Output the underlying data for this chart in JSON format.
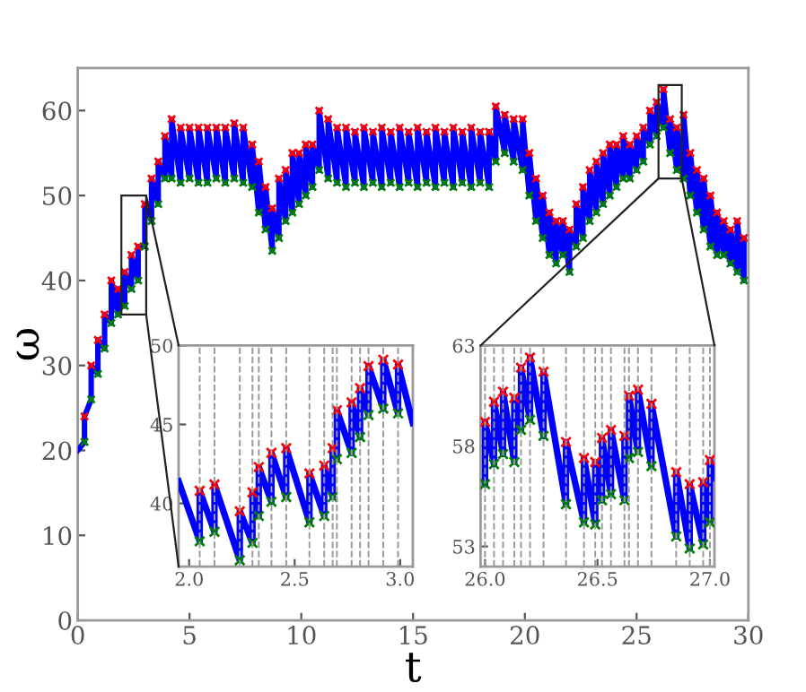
{
  "chart_data": [
    {
      "type": "line",
      "xlabel": "t",
      "ylabel": "ω",
      "xlim": [
        0,
        30
      ],
      "ylim": [
        0,
        65
      ],
      "xticks": [
        0,
        5,
        10,
        15,
        20,
        25,
        30
      ],
      "yticks": [
        0,
        10,
        20,
        30,
        40,
        50,
        60
      ],
      "grid": false,
      "line_style": "solid",
      "series": [
        {
          "color": "#0000ff",
          "marker": "none",
          "x": [
            0,
            0.3,
            0.3,
            0.6,
            0.6,
            0.9,
            0.9,
            1.2,
            1.2,
            1.5,
            1.5,
            1.8,
            1.8,
            2.1,
            2.1,
            2.4,
            2.4,
            2.7,
            2.7,
            3.0,
            3.0,
            3.3,
            3.3,
            3.6,
            3.6,
            3.9,
            3.9,
            4.2,
            4.2,
            4.6,
            4.6,
            5.0,
            5.0,
            5.4,
            5.4,
            5.8,
            5.8,
            6.2,
            6.2,
            6.6,
            6.6,
            7.0,
            7.0,
            7.4,
            7.4,
            7.8,
            7.8,
            8.1,
            8.1,
            8.4,
            8.4,
            8.7,
            8.7,
            9.0,
            9.0,
            9.3,
            9.3,
            9.6,
            9.6,
            9.9,
            9.9,
            10.2,
            10.2,
            10.5,
            10.5,
            10.8,
            10.8,
            11.2,
            11.2,
            11.6,
            11.6,
            12.0,
            12.0,
            12.4,
            12.4,
            12.8,
            12.8,
            13.2,
            13.2,
            13.6,
            13.6,
            14.0,
            14.0,
            14.4,
            14.4,
            14.8,
            14.8,
            15.2,
            15.2,
            15.6,
            15.6,
            16.0,
            16.0,
            16.4,
            16.4,
            16.8,
            16.8,
            17.2,
            17.2,
            17.6,
            17.6,
            18.0,
            18.0,
            18.4,
            18.4,
            18.7,
            18.7,
            19.1,
            19.1,
            19.5,
            19.5,
            19.9,
            19.9,
            20.2,
            20.2,
            20.5,
            20.5,
            20.8,
            20.8,
            21.1,
            21.1,
            21.4,
            21.4,
            21.7,
            21.7,
            22.0,
            22.0,
            22.3,
            22.3,
            22.6,
            22.6,
            22.9,
            22.9,
            23.2,
            23.2,
            23.5,
            23.5,
            23.8,
            23.8,
            24.1,
            24.1,
            24.4,
            24.4,
            24.7,
            24.7,
            25.0,
            25.0,
            25.3,
            25.3,
            25.6,
            25.6,
            25.9,
            25.9,
            26.2,
            26.2,
            26.5,
            26.5,
            26.8,
            26.8,
            27.1,
            27.1,
            27.4,
            27.4,
            27.7,
            27.7,
            28.0,
            28.0,
            28.3,
            28.3,
            28.6,
            28.6,
            28.9,
            28.9,
            29.2,
            29.2,
            29.5,
            29.5,
            29.8,
            29.8
          ],
          "values": [
            20,
            21,
            24,
            26,
            30,
            29,
            33,
            32,
            36,
            35,
            40,
            36,
            39,
            37,
            41,
            39,
            43,
            40,
            44,
            44,
            49,
            47,
            52,
            49,
            54,
            52,
            57,
            52,
            59,
            51.5,
            58,
            52,
            58,
            51.5,
            58,
            51.5,
            58,
            52,
            58,
            51.5,
            58,
            52,
            58.5,
            51.5,
            58,
            51,
            56,
            48,
            54,
            46,
            51,
            43.5,
            48.5,
            45,
            52,
            47,
            53,
            48,
            55,
            49,
            55,
            50,
            56,
            51,
            56,
            53,
            60,
            52,
            59,
            51.5,
            58,
            51,
            58,
            51.5,
            57.5,
            51,
            58,
            51.5,
            57.5,
            51,
            58,
            51.5,
            57.5,
            51,
            58,
            51.5,
            57.5,
            51,
            58,
            51.5,
            57.5,
            51,
            58,
            51.5,
            57.5,
            51,
            58,
            51.5,
            57.5,
            51,
            58,
            51.5,
            57.5,
            51,
            57.5,
            54,
            60.5,
            55,
            59.5,
            54,
            59,
            53,
            59,
            50,
            55,
            47,
            52,
            45,
            50,
            43,
            48,
            42,
            47,
            43,
            47,
            41,
            46,
            44,
            49,
            45,
            51,
            47,
            53,
            48,
            54,
            49,
            55,
            50,
            56,
            51,
            56,
            52,
            57,
            52,
            56,
            53,
            57,
            54,
            58,
            56,
            60,
            57,
            61,
            58,
            62.5,
            55,
            59,
            53,
            58,
            52,
            59.5,
            50,
            55,
            48,
            53,
            46,
            52,
            44,
            50,
            43,
            48,
            43,
            47,
            42,
            46,
            41,
            47,
            40,
            45
          ]
        },
        {
          "type": "scatter",
          "color": "#ff0000",
          "marker": "cross",
          "x": [
            0.3,
            0.6,
            0.9,
            1.2,
            1.5,
            1.8,
            2.1,
            2.4,
            2.7,
            3.0,
            3.3,
            3.6,
            3.9,
            4.2,
            4.6,
            5.0,
            5.4,
            5.8,
            6.2,
            6.6,
            7.0,
            7.4,
            7.8,
            8.1,
            8.4,
            8.7,
            9.0,
            9.3,
            9.6,
            9.9,
            10.2,
            10.5,
            10.8,
            11.2,
            11.6,
            12.0,
            12.4,
            12.8,
            13.2,
            13.6,
            14.0,
            14.4,
            14.8,
            15.2,
            15.6,
            16.0,
            16.4,
            16.8,
            17.2,
            17.6,
            18.0,
            18.4,
            18.7,
            19.1,
            19.5,
            19.9,
            20.2,
            20.5,
            20.8,
            21.1,
            21.4,
            21.7,
            22.0,
            22.3,
            22.6,
            22.9,
            23.2,
            23.5,
            23.8,
            24.1,
            24.4,
            24.7,
            25.0,
            25.3,
            25.6,
            25.9,
            26.2,
            26.5,
            26.8,
            27.1,
            27.4,
            27.7,
            28.0,
            28.3,
            28.6,
            28.9,
            29.2,
            29.5,
            29.8
          ],
          "values": [
            24,
            30,
            33,
            36,
            40,
            39,
            41,
            43,
            44,
            49,
            52,
            54,
            57,
            59,
            58,
            58,
            58,
            58,
            58,
            58,
            58.5,
            58,
            56,
            54,
            51,
            48.5,
            52,
            53,
            55,
            55,
            56,
            56,
            60,
            59,
            58,
            58,
            57.5,
            58,
            57.5,
            58,
            57.5,
            58,
            57.5,
            58,
            57.5,
            58,
            57.5,
            58,
            57.5,
            58,
            57.5,
            57.5,
            60.5,
            59.5,
            59,
            59,
            55,
            52,
            50,
            48,
            47,
            47,
            46,
            49,
            51,
            53,
            54,
            55,
            56,
            56,
            57,
            56,
            57,
            58,
            60,
            61,
            62.5,
            59,
            58,
            59.5,
            55,
            53,
            52,
            50,
            48,
            47,
            46,
            47,
            45
          ]
        },
        {
          "type": "scatter",
          "color": "#008000",
          "marker": "cross",
          "x": [
            0.3,
            0.6,
            0.9,
            1.2,
            1.5,
            1.8,
            2.1,
            2.4,
            2.7,
            3.0,
            3.3,
            3.6,
            3.9,
            4.2,
            4.6,
            5.0,
            5.4,
            5.8,
            6.2,
            6.6,
            7.0,
            7.4,
            7.8,
            8.1,
            8.4,
            8.7,
            9.0,
            9.3,
            9.6,
            9.9,
            10.2,
            10.5,
            10.8,
            11.2,
            11.6,
            12.0,
            12.4,
            12.8,
            13.2,
            13.6,
            14.0,
            14.4,
            14.8,
            15.2,
            15.6,
            16.0,
            16.4,
            16.8,
            17.2,
            17.6,
            18.0,
            18.4,
            18.7,
            19.1,
            19.5,
            19.9,
            20.2,
            20.5,
            20.8,
            21.1,
            21.4,
            21.7,
            22.0,
            22.3,
            22.6,
            22.9,
            23.2,
            23.5,
            23.8,
            24.1,
            24.4,
            24.7,
            25.0,
            25.3,
            25.6,
            25.9,
            26.2,
            26.5,
            26.8,
            27.1,
            27.4,
            27.7,
            28.0,
            28.3,
            28.6,
            28.9,
            29.2,
            29.5,
            29.8
          ],
          "values": [
            21,
            26,
            29,
            32,
            35,
            36,
            37,
            39,
            40,
            44,
            47,
            49,
            52,
            52,
            51.5,
            52,
            51.5,
            51.5,
            52,
            51.5,
            52,
            51.5,
            51,
            48,
            46,
            43.5,
            45,
            47,
            48,
            49,
            50,
            51,
            53,
            52,
            51.5,
            51,
            51.5,
            51,
            51.5,
            51,
            51.5,
            51,
            51.5,
            51,
            51.5,
            51,
            51.5,
            51,
            51.5,
            51,
            51.5,
            51,
            54,
            55,
            54,
            53,
            50,
            47,
            45,
            43,
            42,
            43,
            41,
            44,
            45,
            47,
            48,
            49,
            50,
            51,
            52,
            52,
            53,
            54,
            56,
            57,
            58,
            55,
            53,
            52,
            50,
            48,
            46,
            44,
            43,
            43,
            42,
            41,
            40
          ]
        }
      ]
    },
    {
      "type": "line",
      "xlim": [
        1.95,
        3.06
      ],
      "ylim": [
        36,
        50
      ],
      "xticks": [
        {
          "value": 2.0,
          "label": "2.0"
        },
        2.5,
        {
          "value": 3.0,
          "label": "3.0"
        }
      ],
      "yticks": [
        40,
        45,
        50
      ],
      "grid": false,
      "line_style": "solid",
      "ref_lines": [
        {
          "axis": "x",
          "value": 2.05,
          "color": "#999999",
          "line_style": "dashed"
        },
        {
          "axis": "x",
          "value": 2.12,
          "color": "#999999",
          "line_style": "dashed"
        },
        {
          "axis": "x",
          "value": 2.24,
          "color": "#999999",
          "line_style": "dashed"
        },
        {
          "axis": "x",
          "value": 2.3,
          "color": "#999999",
          "line_style": "dashed"
        },
        {
          "axis": "x",
          "value": 2.33,
          "color": "#999999",
          "line_style": "dashed"
        },
        {
          "axis": "x",
          "value": 2.39,
          "color": "#999999",
          "line_style": "dashed"
        },
        {
          "axis": "x",
          "value": 2.46,
          "color": "#999999",
          "line_style": "dashed"
        },
        {
          "axis": "x",
          "value": 2.57,
          "color": "#999999",
          "line_style": "dashed"
        },
        {
          "axis": "x",
          "value": 2.64,
          "color": "#999999",
          "line_style": "dashed"
        },
        {
          "axis": "x",
          "value": 2.68,
          "color": "#999999",
          "line_style": "dashed"
        },
        {
          "axis": "x",
          "value": 2.7,
          "color": "#999999",
          "line_style": "dashed"
        },
        {
          "axis": "x",
          "value": 2.77,
          "color": "#999999",
          "line_style": "dashed"
        },
        {
          "axis": "x",
          "value": 2.81,
          "color": "#999999",
          "line_style": "dashed"
        },
        {
          "axis": "x",
          "value": 2.85,
          "color": "#999999",
          "line_style": "dashed"
        },
        {
          "axis": "x",
          "value": 2.92,
          "color": "#999999",
          "line_style": "dashed"
        },
        {
          "axis": "x",
          "value": 2.99,
          "color": "#999999",
          "line_style": "dashed"
        }
      ],
      "series": [
        {
          "color": "#0000ff",
          "marker": "none",
          "x": [
            1.95,
            2.05,
            2.05,
            2.12,
            2.12,
            2.24,
            2.24,
            2.3,
            2.3,
            2.33,
            2.33,
            2.39,
            2.39,
            2.46,
            2.46,
            2.57,
            2.57,
            2.64,
            2.64,
            2.68,
            2.68,
            2.7,
            2.7,
            2.77,
            2.77,
            2.81,
            2.81,
            2.85,
            2.85,
            2.92,
            2.92,
            2.99,
            2.99,
            3.06
          ],
          "values": [
            41.4,
            37.6,
            40.8,
            38.2,
            41.2,
            36.4,
            39.5,
            37.5,
            40.7,
            39.2,
            42.3,
            40.1,
            43.2,
            40.4,
            43.5,
            38.8,
            41.9,
            39.2,
            42.4,
            40.4,
            43.5,
            42.8,
            45.9,
            43.2,
            46.4,
            44.2,
            47.3,
            45.6,
            48.7,
            46.0,
            49.1,
            45.7,
            48.8,
            45.1
          ]
        },
        {
          "type": "scatter",
          "color": "#ff0000",
          "marker": "cross",
          "x": [
            2.05,
            2.12,
            2.24,
            2.3,
            2.33,
            2.39,
            2.46,
            2.57,
            2.64,
            2.68,
            2.7,
            2.77,
            2.81,
            2.85,
            2.92,
            2.99
          ],
          "values": [
            40.8,
            41.2,
            39.5,
            40.7,
            42.3,
            43.2,
            43.5,
            41.9,
            42.4,
            43.5,
            45.9,
            46.4,
            47.3,
            48.7,
            49.1,
            48.8
          ]
        },
        {
          "type": "scatter",
          "color": "#008000",
          "marker": "cross",
          "x": [
            2.05,
            2.12,
            2.24,
            2.3,
            2.33,
            2.39,
            2.46,
            2.57,
            2.64,
            2.68,
            2.7,
            2.77,
            2.81,
            2.85,
            2.92,
            2.99
          ],
          "values": [
            37.6,
            38.2,
            36.4,
            37.5,
            39.2,
            40.1,
            40.4,
            38.8,
            39.2,
            40.4,
            42.8,
            43.2,
            44.2,
            45.6,
            46.0,
            45.7
          ]
        }
      ]
    },
    {
      "type": "line",
      "xlim": [
        25.98,
        27.02
      ],
      "ylim": [
        52,
        63
      ],
      "xticks": [
        {
          "value": 26.0,
          "label": "26.0"
        },
        26.5,
        {
          "value": 27.0,
          "label": "27.0"
        }
      ],
      "yticks": [
        53,
        58,
        63
      ],
      "grid": false,
      "line_style": "solid",
      "ref_lines": [
        {
          "axis": "x",
          "value": 26.0,
          "color": "#999999",
          "line_style": "dashed"
        },
        {
          "axis": "x",
          "value": 26.04,
          "color": "#999999",
          "line_style": "dashed"
        },
        {
          "axis": "x",
          "value": 26.08,
          "color": "#999999",
          "line_style": "dashed"
        },
        {
          "axis": "x",
          "value": 26.13,
          "color": "#999999",
          "line_style": "dashed"
        },
        {
          "axis": "x",
          "value": 26.16,
          "color": "#999999",
          "line_style": "dashed"
        },
        {
          "axis": "x",
          "value": 26.2,
          "color": "#999999",
          "line_style": "dashed"
        },
        {
          "axis": "x",
          "value": 26.26,
          "color": "#999999",
          "line_style": "dashed"
        },
        {
          "axis": "x",
          "value": 26.36,
          "color": "#999999",
          "line_style": "dashed"
        },
        {
          "axis": "x",
          "value": 26.44,
          "color": "#999999",
          "line_style": "dashed"
        },
        {
          "axis": "x",
          "value": 26.49,
          "color": "#999999",
          "line_style": "dashed"
        },
        {
          "axis": "x",
          "value": 26.52,
          "color": "#999999",
          "line_style": "dashed"
        },
        {
          "axis": "x",
          "value": 26.56,
          "color": "#999999",
          "line_style": "dashed"
        },
        {
          "axis": "x",
          "value": 26.62,
          "color": "#999999",
          "line_style": "dashed"
        },
        {
          "axis": "x",
          "value": 26.64,
          "color": "#999999",
          "line_style": "dashed"
        },
        {
          "axis": "x",
          "value": 26.68,
          "color": "#999999",
          "line_style": "dashed"
        },
        {
          "axis": "x",
          "value": 26.74,
          "color": "#999999",
          "line_style": "dashed"
        },
        {
          "axis": "x",
          "value": 26.85,
          "color": "#999999",
          "line_style": "dashed"
        },
        {
          "axis": "x",
          "value": 26.91,
          "color": "#999999",
          "line_style": "dashed"
        },
        {
          "axis": "x",
          "value": 26.97,
          "color": "#999999",
          "line_style": "dashed"
        },
        {
          "axis": "x",
          "value": 27.0,
          "color": "#999999",
          "line_style": "dashed"
        }
      ],
      "series": [
        {
          "color": "#0000ff",
          "marker": "none",
          "x": [
            26.0,
            26.0,
            26.04,
            26.04,
            26.08,
            26.08,
            26.13,
            26.13,
            26.16,
            26.16,
            26.2,
            26.2,
            26.26,
            26.26,
            26.36,
            26.36,
            26.44,
            26.44,
            26.49,
            26.49,
            26.52,
            26.52,
            26.56,
            26.56,
            26.62,
            26.62,
            26.64,
            26.64,
            26.68,
            26.68,
            26.74,
            26.74,
            26.85,
            26.85,
            26.91,
            26.91,
            26.97,
            26.97,
            27.0,
            27.0,
            27.02
          ],
          "values": [
            56.1,
            59.2,
            57.1,
            60.2,
            57.6,
            60.7,
            57.2,
            60.4,
            58.8,
            61.9,
            59.3,
            62.4,
            58.5,
            61.7,
            55.1,
            58.2,
            54.2,
            57.4,
            54.1,
            57.2,
            55.3,
            58.4,
            55.6,
            58.8,
            55.3,
            58.5,
            57.4,
            60.5,
            57.7,
            60.8,
            57.0,
            60.1,
            53.5,
            56.7,
            52.9,
            56.1,
            53.1,
            56.2,
            54.2,
            57.3,
            56.4
          ]
        },
        {
          "type": "scatter",
          "color": "#ff0000",
          "marker": "cross",
          "x": [
            26.0,
            26.04,
            26.08,
            26.13,
            26.16,
            26.2,
            26.26,
            26.36,
            26.44,
            26.49,
            26.52,
            26.56,
            26.62,
            26.64,
            26.68,
            26.74,
            26.85,
            26.91,
            26.97,
            27.0
          ],
          "values": [
            59.2,
            60.2,
            60.7,
            60.4,
            61.9,
            62.4,
            61.7,
            58.2,
            57.4,
            57.2,
            58.4,
            58.8,
            58.5,
            60.5,
            60.8,
            60.1,
            56.7,
            56.1,
            56.2,
            57.3
          ]
        },
        {
          "type": "scatter",
          "color": "#008000",
          "marker": "cross",
          "x": [
            26.0,
            26.04,
            26.08,
            26.13,
            26.16,
            26.2,
            26.26,
            26.36,
            26.44,
            26.49,
            26.52,
            26.56,
            26.62,
            26.64,
            26.68,
            26.74,
            26.85,
            26.91,
            26.97,
            27.0
          ],
          "values": [
            56.1,
            57.1,
            57.6,
            57.2,
            58.8,
            59.3,
            58.5,
            55.1,
            54.2,
            54.1,
            55.3,
            55.6,
            55.3,
            57.4,
            57.7,
            57.0,
            53.5,
            52.9,
            53.1,
            54.2
          ]
        }
      ]
    }
  ]
}
